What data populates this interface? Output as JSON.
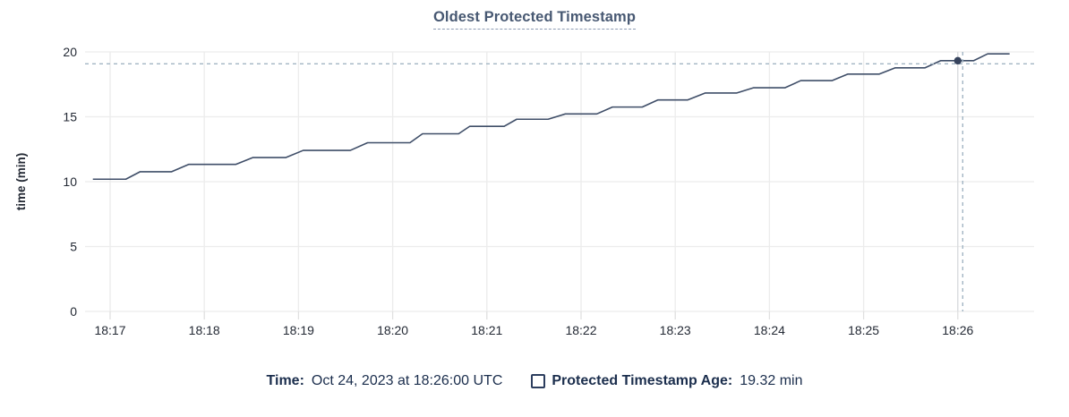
{
  "title": {
    "text": "Oldest Protected Timestamp"
  },
  "chart_data": {
    "type": "line",
    "title": "Oldest Protected Timestamp",
    "xlabel": "",
    "ylabel": "time (min)",
    "ylim": [
      0,
      20
    ],
    "y_ticks": [
      0,
      5,
      10,
      15,
      20
    ],
    "x_tick_labels": [
      "18:17",
      "18:18",
      "18:19",
      "18:20",
      "18:21",
      "18:22",
      "18:23",
      "18:24",
      "18:25",
      "18:26"
    ],
    "x_tick_seconds": [
      0,
      60,
      120,
      180,
      240,
      300,
      360,
      420,
      480,
      540
    ],
    "grid": true,
    "legend_position": "bottom",
    "series": [
      {
        "name": "Protected Timestamp Age",
        "unit": "min",
        "points_t_v": [
          [
            -11,
            10.19
          ],
          [
            10,
            10.19
          ],
          [
            19,
            10.76
          ],
          [
            39,
            10.76
          ],
          [
            50,
            11.33
          ],
          [
            80,
            11.33
          ],
          [
            91,
            11.86
          ],
          [
            112,
            11.86
          ],
          [
            123,
            12.41
          ],
          [
            153,
            12.41
          ],
          [
            164,
            13.0
          ],
          [
            191,
            13.0
          ],
          [
            199,
            13.69
          ],
          [
            222,
            13.69
          ],
          [
            229,
            14.26
          ],
          [
            251,
            14.26
          ],
          [
            259,
            14.81
          ],
          [
            279,
            14.81
          ],
          [
            290,
            15.22
          ],
          [
            310,
            15.22
          ],
          [
            320,
            15.75
          ],
          [
            339,
            15.75
          ],
          [
            349,
            16.3
          ],
          [
            368,
            16.3
          ],
          [
            379,
            16.83
          ],
          [
            399,
            16.83
          ],
          [
            410,
            17.24
          ],
          [
            430,
            17.24
          ],
          [
            440,
            17.79
          ],
          [
            460,
            17.79
          ],
          [
            470,
            18.29
          ],
          [
            490,
            18.29
          ],
          [
            500,
            18.77
          ],
          [
            519,
            18.77
          ],
          [
            529,
            19.32
          ],
          [
            550,
            19.32
          ],
          [
            559,
            19.85
          ],
          [
            573,
            19.85
          ]
        ],
        "t_is_seconds_after": "18:17:00"
      }
    ],
    "hover_point": {
      "time": "18:26:00",
      "t_seconds": 540,
      "value_min": 19.32
    }
  },
  "legend": {
    "time_label": "Time:",
    "time_value": "Oct 24, 2023 at 18:26:00 UTC",
    "series_label": "Protected Timestamp Age:",
    "series_value": "19.32 min"
  },
  "colors": {
    "title": "#475872",
    "series_line": "#3f4e68",
    "hover_dot": "#36435d",
    "crosshair_dash": "#a2b5c4",
    "grid_line": "#ececec",
    "tick_mark": "#e0e0e0",
    "hover_track": "#d8dbde",
    "axis_text": "#242a35",
    "legend_text": "#1b2e4d",
    "checkbox_border": "#2c3d5e",
    "background": "#ffffff"
  }
}
